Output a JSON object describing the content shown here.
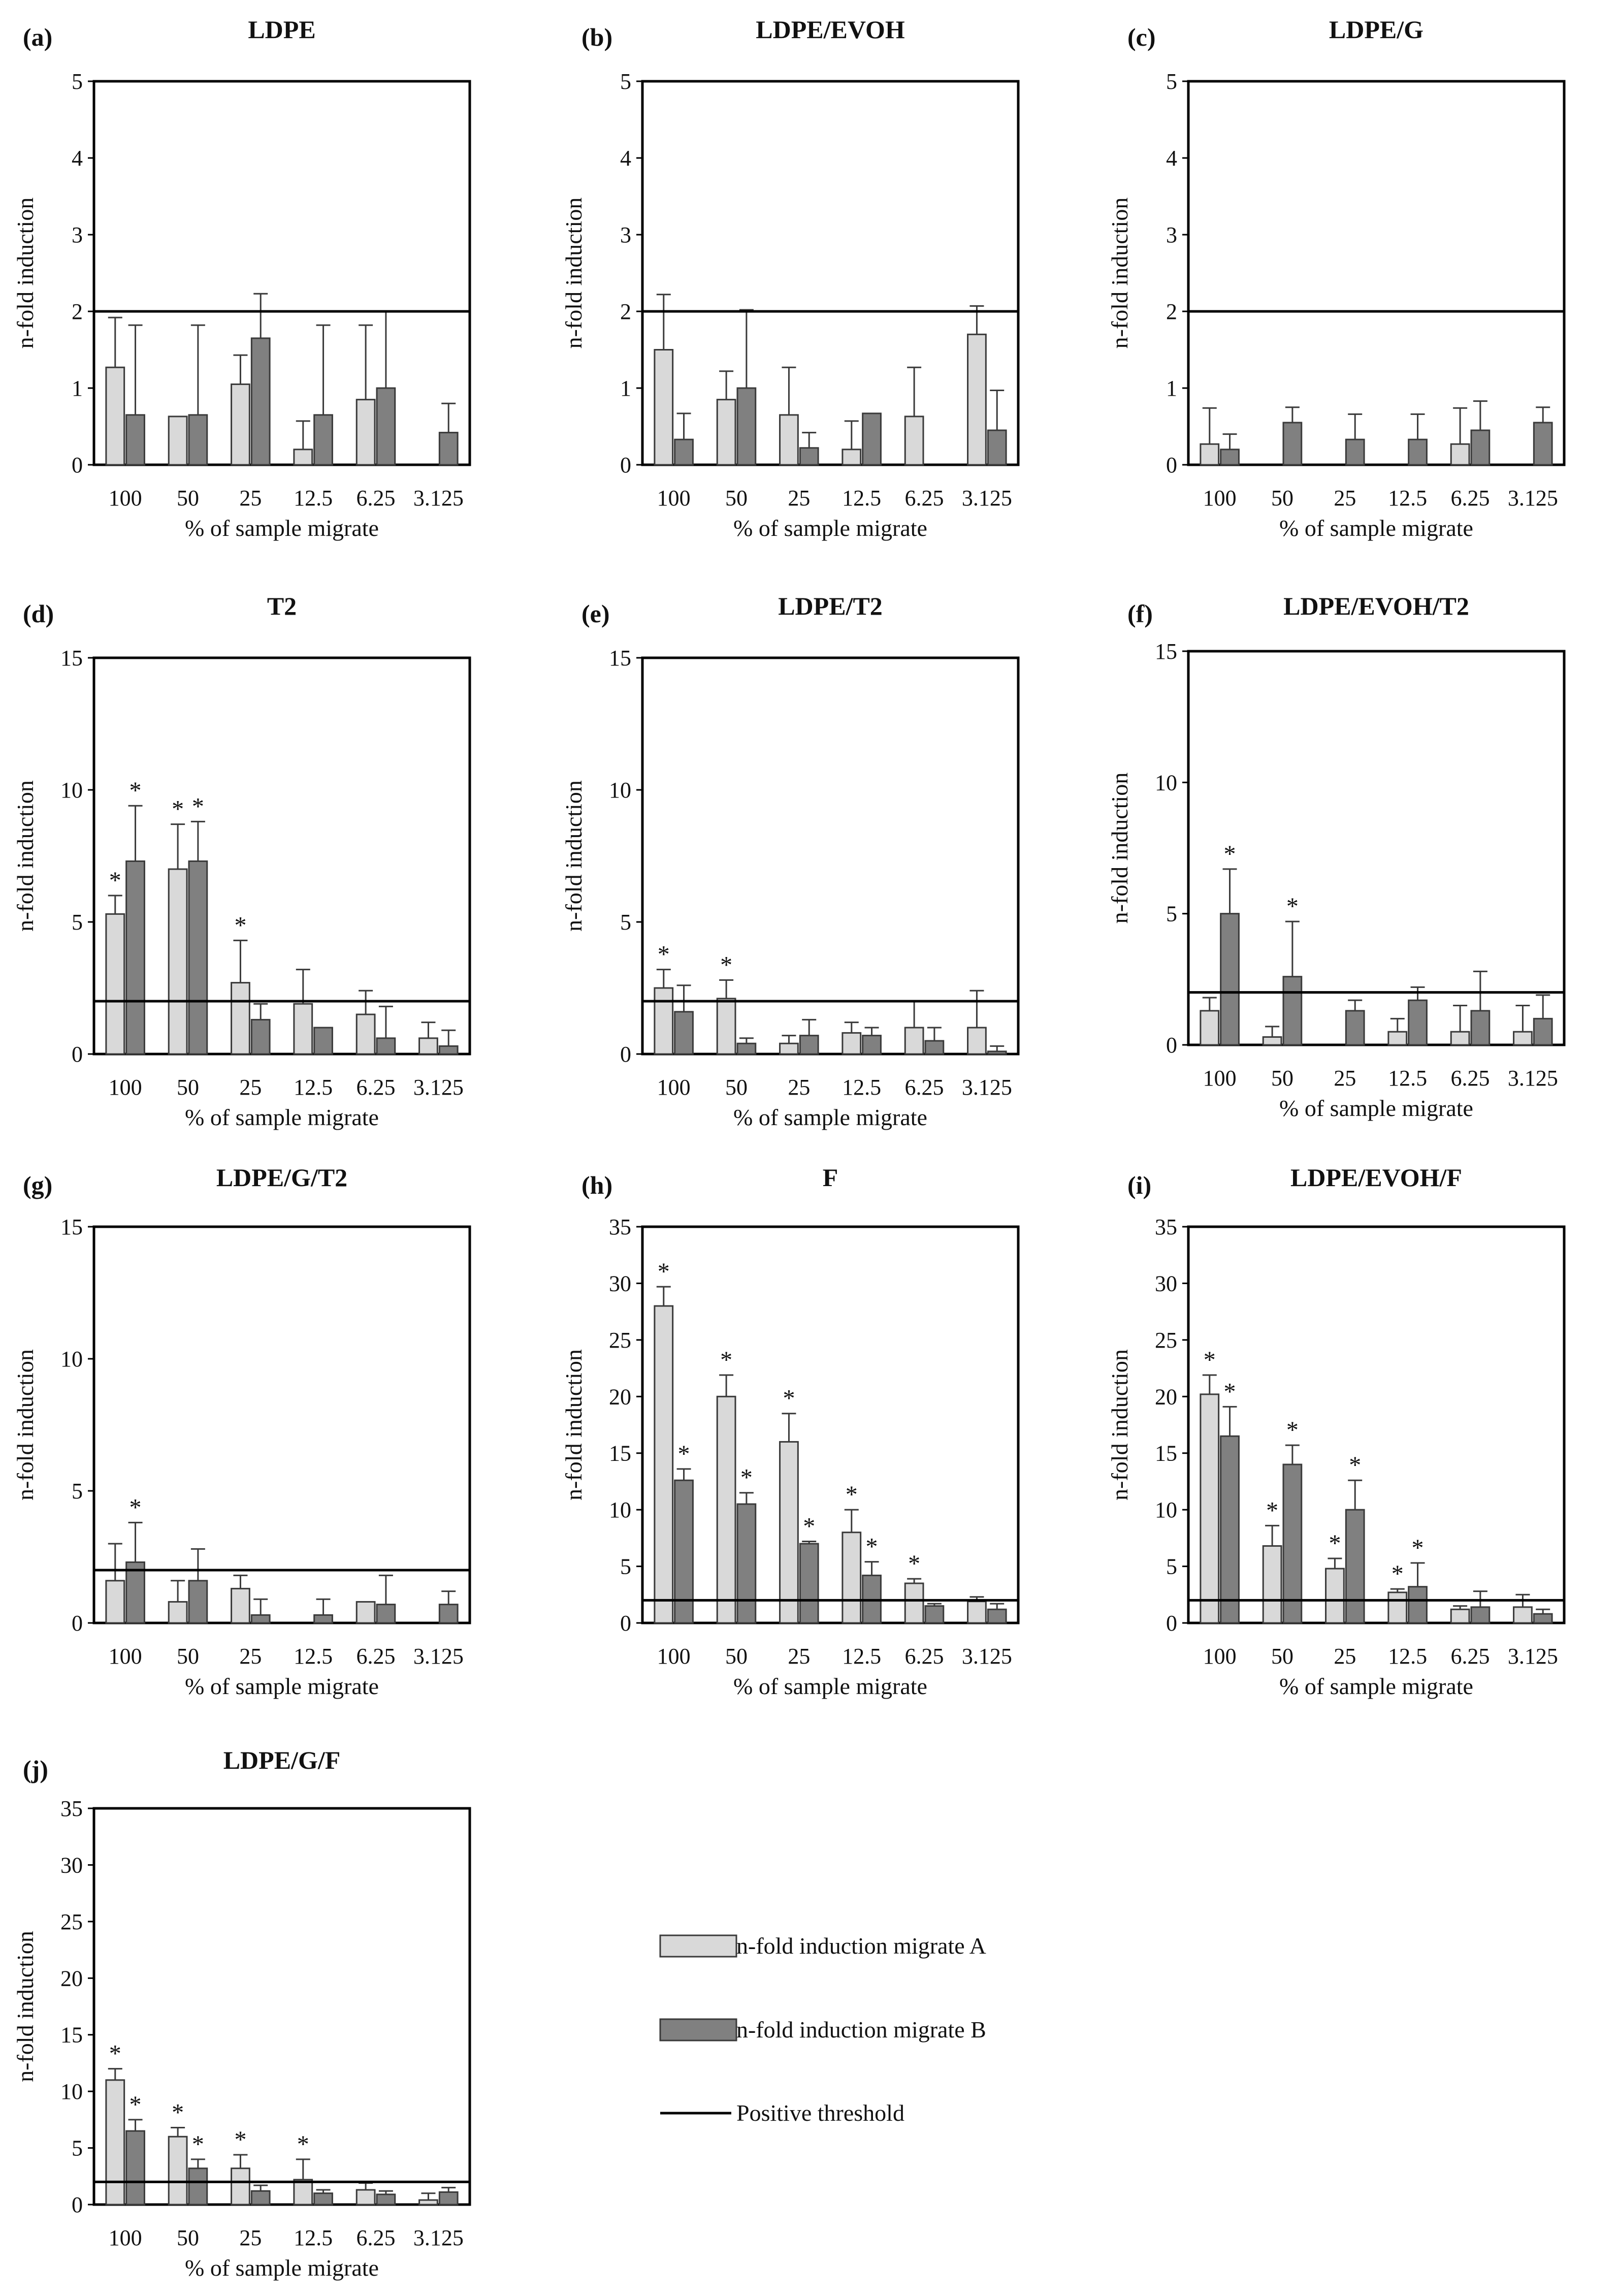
{
  "legend": {
    "series_a": "n-fold induction migrate A",
    "series_b": "n-fold induction migrate B",
    "threshold": "Positive threshold"
  },
  "colors": {
    "series_a": "#d9d9d9",
    "series_b": "#808080",
    "outline": "#3a3a3a",
    "threshold": "#000000"
  },
  "chart_data": [
    {
      "type": "bar",
      "letter": "(a)",
      "title": "LDPE",
      "xlabel": "% of sample migrate",
      "ylabel": "n-fold induction",
      "categories": [
        "100",
        "50",
        "25",
        "12.5",
        "6.25",
        "3.125"
      ],
      "ylim": [
        0,
        5
      ],
      "yticks": [
        0,
        1,
        2,
        3,
        4,
        5
      ],
      "threshold": 2,
      "series": [
        {
          "name": "n-fold induction migrate A",
          "values": [
            1.27,
            0.63,
            1.05,
            0.2,
            0.85,
            0
          ],
          "errors": [
            0.65,
            0,
            0.38,
            0.37,
            0.97,
            0
          ],
          "stars": [
            false,
            false,
            false,
            false,
            false,
            false
          ]
        },
        {
          "name": "n-fold induction migrate B",
          "values": [
            0.65,
            0.65,
            1.65,
            0.65,
            1.0,
            0.42
          ],
          "errors": [
            1.17,
            1.17,
            0.58,
            1.17,
            1.0,
            0.38
          ],
          "stars": [
            false,
            false,
            false,
            false,
            false,
            false
          ]
        }
      ]
    },
    {
      "type": "bar",
      "letter": "(b)",
      "title": "LDPE/EVOH",
      "xlabel": "% of sample migrate",
      "ylabel": "n-fold induction",
      "categories": [
        "100",
        "50",
        "25",
        "12.5",
        "6.25",
        "3.125"
      ],
      "ylim": [
        0,
        5
      ],
      "yticks": [
        0,
        1,
        2,
        3,
        4,
        5
      ],
      "threshold": 2,
      "series": [
        {
          "name": "n-fold induction migrate A",
          "values": [
            1.5,
            0.85,
            0.65,
            0.2,
            0.63,
            1.7
          ],
          "errors": [
            0.72,
            0.37,
            0.62,
            0.37,
            0.64,
            0.37
          ],
          "stars": [
            false,
            false,
            false,
            false,
            false,
            false
          ]
        },
        {
          "name": "n-fold induction migrate B",
          "values": [
            0.33,
            1.0,
            0.22,
            0.67,
            0,
            0.45
          ],
          "errors": [
            0.34,
            1.02,
            0.2,
            0,
            0,
            0.52
          ],
          "stars": [
            false,
            false,
            false,
            false,
            false,
            false
          ]
        }
      ]
    },
    {
      "type": "bar",
      "letter": "(c)",
      "title": "LDPE/G",
      "xlabel": "% of sample migrate",
      "ylabel": "n-fold induction",
      "categories": [
        "100",
        "50",
        "25",
        "12.5",
        "6.25",
        "3.125"
      ],
      "ylim": [
        0,
        5
      ],
      "yticks": [
        0,
        1,
        2,
        3,
        4,
        5
      ],
      "threshold": 2,
      "series": [
        {
          "name": "n-fold induction migrate A",
          "values": [
            0.27,
            0,
            0,
            0,
            0.27,
            0
          ],
          "errors": [
            0.47,
            0,
            0,
            0,
            0.47,
            0
          ],
          "stars": [
            false,
            false,
            false,
            false,
            false,
            false
          ]
        },
        {
          "name": "n-fold induction migrate B",
          "values": [
            0.2,
            0.55,
            0.33,
            0.33,
            0.45,
            0.55
          ],
          "errors": [
            0.2,
            0.2,
            0.33,
            0.33,
            0.38,
            0.2
          ],
          "stars": [
            false,
            false,
            false,
            false,
            false,
            false
          ]
        }
      ]
    },
    {
      "type": "bar",
      "letter": "(d)",
      "title": "T2",
      "xlabel": "% of sample migrate",
      "ylabel": "n-fold induction",
      "categories": [
        "100",
        "50",
        "25",
        "12.5",
        "6.25",
        "3.125"
      ],
      "ylim": [
        0,
        15
      ],
      "yticks": [
        0,
        5,
        10,
        15
      ],
      "threshold": 2,
      "series": [
        {
          "name": "n-fold induction migrate A",
          "values": [
            5.3,
            7.0,
            2.7,
            1.9,
            1.5,
            0.6
          ],
          "errors": [
            0.7,
            1.7,
            1.6,
            1.3,
            0.9,
            0.6
          ],
          "stars": [
            true,
            true,
            true,
            false,
            false,
            false
          ]
        },
        {
          "name": "n-fold induction migrate B",
          "values": [
            7.3,
            7.3,
            1.3,
            1.0,
            0.6,
            0.3
          ],
          "errors": [
            2.1,
            1.5,
            0.6,
            0,
            1.2,
            0.6
          ],
          "stars": [
            true,
            true,
            false,
            false,
            false,
            false
          ]
        }
      ]
    },
    {
      "type": "bar",
      "letter": "(e)",
      "title": "LDPE/T2",
      "xlabel": "% of sample migrate",
      "ylabel": "n-fold induction",
      "categories": [
        "100",
        "50",
        "25",
        "12.5",
        "6.25",
        "3.125"
      ],
      "ylim": [
        0,
        15
      ],
      "yticks": [
        0,
        5,
        10,
        15
      ],
      "threshold": 2,
      "series": [
        {
          "name": "n-fold induction migrate A",
          "values": [
            2.5,
            2.1,
            0.4,
            0.8,
            1.0,
            1.0
          ],
          "errors": [
            0.7,
            0.7,
            0.3,
            0.4,
            1.0,
            1.4
          ],
          "stars": [
            true,
            true,
            false,
            false,
            false,
            false
          ]
        },
        {
          "name": "n-fold induction migrate B",
          "values": [
            1.6,
            0.4,
            0.7,
            0.7,
            0.5,
            0.1
          ],
          "errors": [
            1.0,
            0.2,
            0.6,
            0.3,
            0.5,
            0.2
          ],
          "stars": [
            false,
            false,
            false,
            false,
            false,
            false
          ]
        }
      ]
    },
    {
      "type": "bar",
      "letter": "(f)",
      "title": "LDPE/EVOH/T2",
      "xlabel": "% of sample migrate",
      "ylabel": "n-fold induction",
      "categories": [
        "100",
        "50",
        "25",
        "12.5",
        "6.25",
        "3.125"
      ],
      "ylim": [
        0,
        15
      ],
      "yticks": [
        0,
        5,
        10,
        15
      ],
      "threshold": 2,
      "series": [
        {
          "name": "n-fold induction migrate A",
          "values": [
            1.3,
            0.3,
            0,
            0.5,
            0.5,
            0.5
          ],
          "errors": [
            0.5,
            0.4,
            0,
            0.5,
            1.0,
            1.0
          ],
          "stars": [
            false,
            false,
            false,
            false,
            false,
            false
          ]
        },
        {
          "name": "n-fold induction migrate B",
          "values": [
            5.0,
            2.6,
            1.3,
            1.7,
            1.3,
            1.0
          ],
          "errors": [
            1.7,
            2.1,
            0.4,
            0.5,
            1.5,
            0.9
          ],
          "stars": [
            true,
            true,
            false,
            false,
            false,
            false
          ]
        }
      ]
    },
    {
      "type": "bar",
      "letter": "(g)",
      "title": "LDPE/G/T2",
      "xlabel": "% of sample migrate",
      "ylabel": "n-fold induction",
      "categories": [
        "100",
        "50",
        "25",
        "12.5",
        "6.25",
        "3.125"
      ],
      "ylim": [
        0,
        15
      ],
      "yticks": [
        0,
        5,
        10,
        15
      ],
      "threshold": 2,
      "series": [
        {
          "name": "n-fold induction migrate A",
          "values": [
            1.6,
            0.8,
            1.3,
            0,
            0.8,
            0
          ],
          "errors": [
            1.4,
            0.8,
            0.5,
            0,
            0,
            0
          ],
          "stars": [
            false,
            false,
            false,
            false,
            false,
            false
          ]
        },
        {
          "name": "n-fold induction migrate B",
          "values": [
            2.3,
            1.6,
            0.3,
            0.3,
            0.7,
            0.7
          ],
          "errors": [
            1.5,
            1.2,
            0.6,
            0.6,
            1.1,
            0.5
          ],
          "stars": [
            true,
            false,
            false,
            false,
            false,
            false
          ]
        }
      ]
    },
    {
      "type": "bar",
      "letter": "(h)",
      "title": "F",
      "xlabel": "% of sample migrate",
      "ylabel": "n-fold induction",
      "categories": [
        "100",
        "50",
        "25",
        "12.5",
        "6.25",
        "3.125"
      ],
      "ylim": [
        0,
        35
      ],
      "yticks": [
        0,
        5,
        10,
        15,
        20,
        25,
        30,
        35
      ],
      "threshold": 2,
      "series": [
        {
          "name": "n-fold induction migrate A",
          "values": [
            28.0,
            20.0,
            16.0,
            8.0,
            3.5,
            1.9
          ],
          "errors": [
            1.7,
            1.9,
            2.5,
            2.0,
            0.4,
            0.4
          ],
          "stars": [
            true,
            true,
            true,
            true,
            true,
            false
          ]
        },
        {
          "name": "n-fold induction migrate B",
          "values": [
            12.6,
            10.5,
            7.0,
            4.2,
            1.5,
            1.2
          ],
          "errors": [
            1.0,
            1.0,
            0.2,
            1.2,
            0.2,
            0.5
          ],
          "stars": [
            true,
            true,
            true,
            true,
            false,
            false
          ]
        }
      ]
    },
    {
      "type": "bar",
      "letter": "(i)",
      "title": "LDPE/EVOH/F",
      "xlabel": "% of sample migrate",
      "ylabel": "n-fold induction",
      "categories": [
        "100",
        "50",
        "25",
        "12.5",
        "6.25",
        "3.125"
      ],
      "ylim": [
        0,
        35
      ],
      "yticks": [
        0,
        5,
        10,
        15,
        20,
        25,
        30,
        35
      ],
      "threshold": 2,
      "series": [
        {
          "name": "n-fold induction migrate A",
          "values": [
            20.2,
            6.8,
            4.8,
            2.7,
            1.2,
            1.4
          ],
          "errors": [
            1.7,
            1.8,
            0.9,
            0.3,
            0.3,
            1.1
          ],
          "stars": [
            true,
            true,
            true,
            true,
            false,
            false
          ]
        },
        {
          "name": "n-fold induction migrate B",
          "values": [
            16.5,
            14.0,
            10.0,
            3.2,
            1.4,
            0.8
          ],
          "errors": [
            2.6,
            1.7,
            2.6,
            2.1,
            1.4,
            0.4
          ],
          "stars": [
            true,
            true,
            true,
            true,
            false,
            false
          ]
        }
      ]
    },
    {
      "type": "bar",
      "letter": "(j)",
      "title": "LDPE/G/F",
      "xlabel": "% of sample migrate",
      "ylabel": "n-fold induction",
      "categories": [
        "100",
        "50",
        "25",
        "12.5",
        "6.25",
        "3.125"
      ],
      "ylim": [
        0,
        35
      ],
      "yticks": [
        0,
        5,
        10,
        15,
        20,
        25,
        30,
        35
      ],
      "threshold": 2,
      "series": [
        {
          "name": "n-fold induction migrate A",
          "values": [
            11.0,
            6.0,
            3.2,
            2.2,
            1.3,
            0.4
          ],
          "errors": [
            1.0,
            0.8,
            1.2,
            1.8,
            0.6,
            0.6
          ],
          "stars": [
            true,
            true,
            true,
            true,
            false,
            false
          ]
        },
        {
          "name": "n-fold induction migrate B",
          "values": [
            6.5,
            3.2,
            1.2,
            1.0,
            0.9,
            1.1
          ],
          "errors": [
            1.0,
            0.8,
            0.5,
            0.3,
            0.3,
            0.4
          ],
          "stars": [
            true,
            true,
            false,
            false,
            false,
            false
          ]
        }
      ]
    }
  ]
}
